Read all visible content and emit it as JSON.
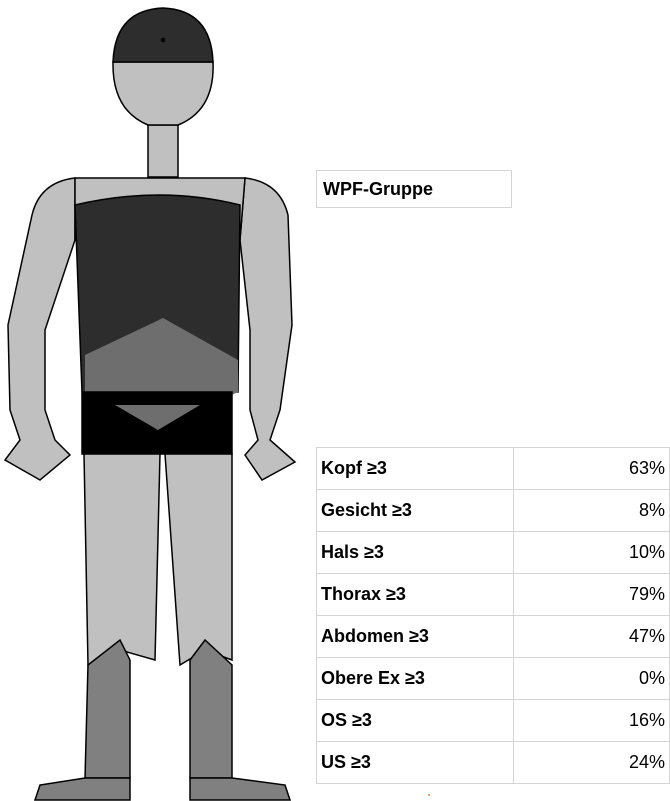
{
  "header": {
    "title": "WPF-Gruppe"
  },
  "table": {
    "rows": [
      [
        "Kopf ≥3",
        "63%"
      ],
      [
        "Gesicht ≥3",
        "8%"
      ],
      [
        "Hals ≥3",
        "10%"
      ],
      [
        "Thorax ≥3",
        "79%"
      ],
      [
        "Abdomen ≥3",
        "47%"
      ],
      [
        "Obere Ex ≥3",
        "0%"
      ],
      [
        "OS ≥3",
        "16%"
      ],
      [
        "US ≥3",
        "24%"
      ]
    ]
  }
}
